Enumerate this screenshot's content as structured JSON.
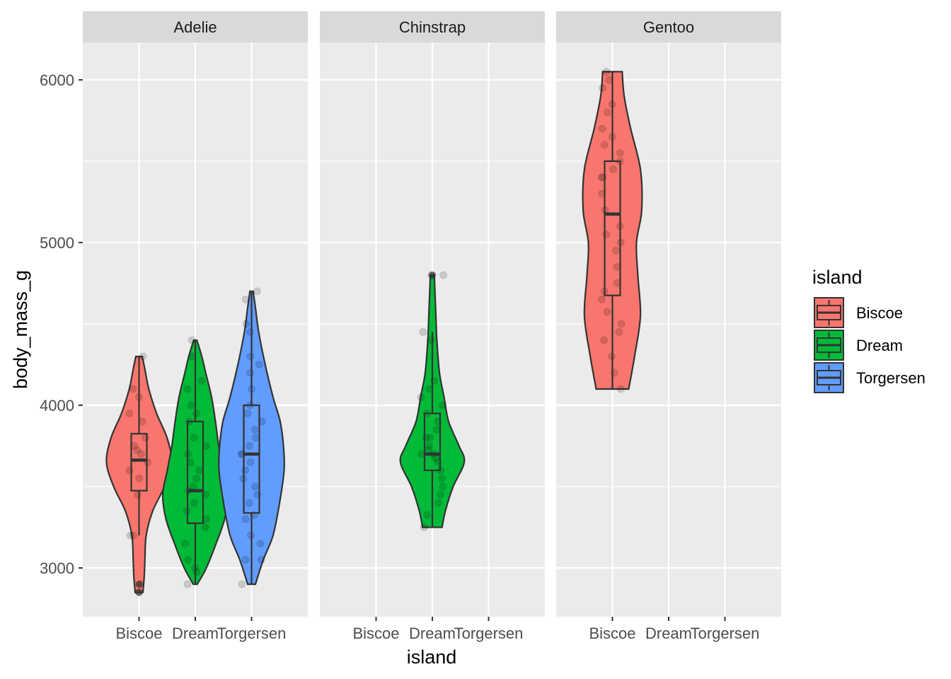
{
  "chart_data": {
    "type": "violin",
    "xlabel": "island",
    "ylabel": "body_mass_g",
    "x_categories": [
      "Biscoe",
      "Dream",
      "Torgersen"
    ],
    "ylim": [
      2700,
      6230
    ],
    "y_ticks": [
      3000,
      4000,
      5000,
      6000
    ],
    "y_tick_labels": [
      "3000",
      "4000",
      "5000",
      "6000"
    ],
    "facets": [
      "Adelie",
      "Chinstrap",
      "Gentoo"
    ],
    "grid": true,
    "legend": {
      "title": "island",
      "position": "right",
      "entries": [
        {
          "label": "Biscoe",
          "color": "#F8766D"
        },
        {
          "label": "Dream",
          "color": "#00BA38"
        },
        {
          "label": "Torgersen",
          "color": "#619CFF"
        }
      ]
    },
    "groups": [
      {
        "facet": "Adelie",
        "island": "Biscoe",
        "color": "#F8766D",
        "min": 2850,
        "max": 4300,
        "box": {
          "lower_whisker": 3200,
          "q1": 3475,
          "median": 3663,
          "q3": 3825,
          "upper_whisker": 4300
        },
        "outliers": [
          2850,
          2900
        ],
        "violin": [
          [
            2850,
            0.12
          ],
          [
            2950,
            0.16
          ],
          [
            3050,
            0.18
          ],
          [
            3200,
            0.22
          ],
          [
            3350,
            0.42
          ],
          [
            3500,
            0.78
          ],
          [
            3650,
            1.0
          ],
          [
            3800,
            0.86
          ],
          [
            3950,
            0.54
          ],
          [
            4100,
            0.3
          ],
          [
            4200,
            0.2
          ],
          [
            4300,
            0.1
          ]
        ],
        "points": [
          2850,
          2900,
          3200,
          3200,
          3450,
          3550,
          3600,
          3650,
          3700,
          3725,
          3750,
          3800,
          3900,
          3950,
          4050,
          4100,
          4300
        ]
      },
      {
        "facet": "Adelie",
        "island": "Dream",
        "color": "#00BA38",
        "min": 2900,
        "max": 4400,
        "box": {
          "lower_whisker": 2900,
          "q1": 3275,
          "median": 3475,
          "q3": 3900,
          "upper_whisker": 4400
        },
        "outliers": [],
        "violin": [
          [
            2900,
            0.06
          ],
          [
            3000,
            0.34
          ],
          [
            3150,
            0.64
          ],
          [
            3300,
            0.9
          ],
          [
            3450,
            1.0
          ],
          [
            3600,
            0.86
          ],
          [
            3750,
            0.72
          ],
          [
            3900,
            0.62
          ],
          [
            4050,
            0.5
          ],
          [
            4200,
            0.32
          ],
          [
            4300,
            0.2
          ],
          [
            4400,
            0.05
          ]
        ],
        "points": [
          2900,
          2975,
          3000,
          3050,
          3150,
          3250,
          3300,
          3350,
          3400,
          3450,
          3475,
          3500,
          3550,
          3600,
          3650,
          3700,
          3750,
          3800,
          3900,
          3950,
          4000,
          4100,
          4150,
          4300,
          4400
        ]
      },
      {
        "facet": "Adelie",
        "island": "Torgersen",
        "color": "#619CFF",
        "min": 2900,
        "max": 4700,
        "box": {
          "lower_whisker": 2900,
          "q1": 3338,
          "median": 3700,
          "q3": 4000,
          "upper_whisker": 4700
        },
        "outliers": [],
        "violin": [
          [
            2900,
            0.12
          ],
          [
            3050,
            0.36
          ],
          [
            3200,
            0.66
          ],
          [
            3400,
            0.86
          ],
          [
            3600,
            1.0
          ],
          [
            3750,
            0.98
          ],
          [
            3900,
            0.88
          ],
          [
            4050,
            0.66
          ],
          [
            4250,
            0.42
          ],
          [
            4450,
            0.22
          ],
          [
            4600,
            0.12
          ],
          [
            4700,
            0.05
          ]
        ],
        "points": [
          2900,
          3050,
          3050,
          3150,
          3200,
          3300,
          3325,
          3400,
          3450,
          3500,
          3550,
          3600,
          3650,
          3700,
          3700,
          3750,
          3800,
          3850,
          3900,
          3950,
          4000,
          4100,
          4200,
          4250,
          4300,
          4450,
          4500,
          4650,
          4700
        ]
      },
      {
        "facet": "Chinstrap",
        "island": "Dream",
        "color": "#00BA38",
        "min": 3250,
        "max": 4800,
        "box": {
          "lower_whisker": 3250,
          "q1": 3600,
          "median": 3700,
          "q3": 3950,
          "upper_whisker": 4450
        },
        "outliers": [
          4800
        ],
        "violin": [
          [
            3250,
            0.3
          ],
          [
            3350,
            0.4
          ],
          [
            3500,
            0.64
          ],
          [
            3650,
            0.98
          ],
          [
            3750,
            0.82
          ],
          [
            3900,
            0.5
          ],
          [
            4050,
            0.36
          ],
          [
            4200,
            0.22
          ],
          [
            4400,
            0.14
          ],
          [
            4600,
            0.1
          ],
          [
            4700,
            0.08
          ],
          [
            4800,
            0.06
          ]
        ],
        "points": [
          3250,
          3325,
          3400,
          3450,
          3500,
          3550,
          3600,
          3650,
          3675,
          3700,
          3700,
          3725,
          3750,
          3800,
          3800,
          3850,
          3900,
          3950,
          4000,
          4050,
          4100,
          4150,
          4400,
          4450,
          4800,
          4800
        ]
      },
      {
        "facet": "Gentoo",
        "island": "Biscoe",
        "color": "#F8766D",
        "min": 4100,
        "max": 6050,
        "box": {
          "lower_whisker": 4100,
          "q1": 4675,
          "median": 5175,
          "q3": 5500,
          "upper_whisker": 6050
        },
        "outliers": [],
        "violin": [
          [
            4100,
            0.5
          ],
          [
            4300,
            0.68
          ],
          [
            4550,
            0.86
          ],
          [
            4800,
            0.78
          ],
          [
            5000,
            0.74
          ],
          [
            5200,
            0.9
          ],
          [
            5450,
            0.86
          ],
          [
            5700,
            0.56
          ],
          [
            5900,
            0.36
          ],
          [
            6050,
            0.3
          ]
        ],
        "points": [
          4100,
          4200,
          4300,
          4400,
          4450,
          4500,
          4575,
          4650,
          4700,
          4750,
          4850,
          4950,
          5000,
          5050,
          5100,
          5200,
          5300,
          5400,
          5400,
          5450,
          5500,
          5550,
          5600,
          5650,
          5700,
          5800,
          5850,
          5950,
          6000,
          6050
        ]
      }
    ]
  }
}
